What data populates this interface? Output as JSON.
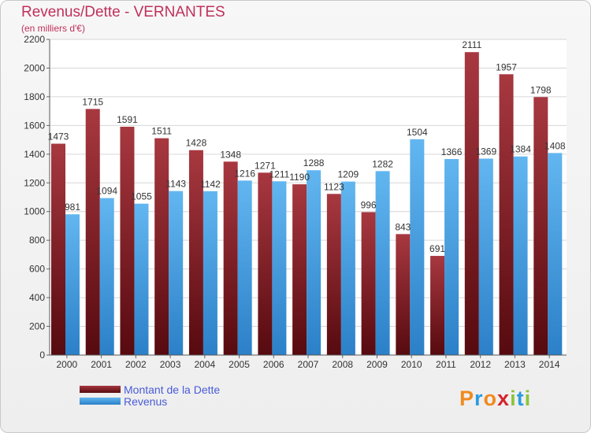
{
  "header": {
    "title": "Revenus/Dette - VERNANTES",
    "subtitle": "(en milliers d'€)"
  },
  "legend": {
    "items": [
      {
        "label": "Montant de la Dette",
        "color": "#7a1a1f"
      },
      {
        "label": "Revenus",
        "color": "#3d9de4"
      }
    ]
  },
  "logo": {
    "letters": [
      {
        "ch": "P",
        "color": "#f08a1e"
      },
      {
        "ch": "r",
        "color": "#2a9be0"
      },
      {
        "ch": "o",
        "color": "#f08a1e"
      },
      {
        "ch": "x",
        "color": "#d4252b"
      },
      {
        "ch": "i",
        "color": "#8cc43c"
      },
      {
        "ch": "t",
        "color": "#2a9be0"
      },
      {
        "ch": "i",
        "color": "#8cc43c"
      }
    ]
  },
  "chart_data": {
    "type": "bar",
    "categories": [
      "2000",
      "2001",
      "2002",
      "2003",
      "2004",
      "2005",
      "2006",
      "2007",
      "2008",
      "2009",
      "2010",
      "2011",
      "2012",
      "2013",
      "2014"
    ],
    "series": [
      {
        "name": "Montant de la Dette",
        "color": "#7a1a1f",
        "values": [
          1473,
          1715,
          1591,
          1511,
          1428,
          1348,
          1271,
          1190,
          1123,
          996,
          843,
          691,
          2111,
          1957,
          1798
        ],
        "labels": [
          "1473",
          "1715",
          "1591",
          "1511",
          "1428",
          "1348",
          "1271",
          "1190",
          "1123",
          "996",
          "843",
          "691",
          "2111",
          "1957",
          "1798"
        ]
      },
      {
        "name": "Revenus",
        "color": "#3d9de4",
        "values": [
          981,
          1094,
          1055,
          1143,
          1142,
          1216,
          1211,
          1288,
          1209,
          1282,
          1504,
          1366,
          1369,
          1384,
          1408
        ],
        "labels": [
          "981",
          "1094",
          "1055",
          "1143",
          "1142",
          "1216",
          "1211",
          "1288",
          "1209",
          "1282",
          "1504",
          "1366",
          "1369",
          "1384",
          "1408"
        ]
      }
    ],
    "yticks": [
      "0",
      "200",
      "400",
      "600",
      "800",
      "1000",
      "1200",
      "1400",
      "1600",
      "1800",
      "2000",
      "2200"
    ],
    "ylim": [
      0,
      2200
    ],
    "grid": true,
    "legend_position": "bottom-left"
  }
}
